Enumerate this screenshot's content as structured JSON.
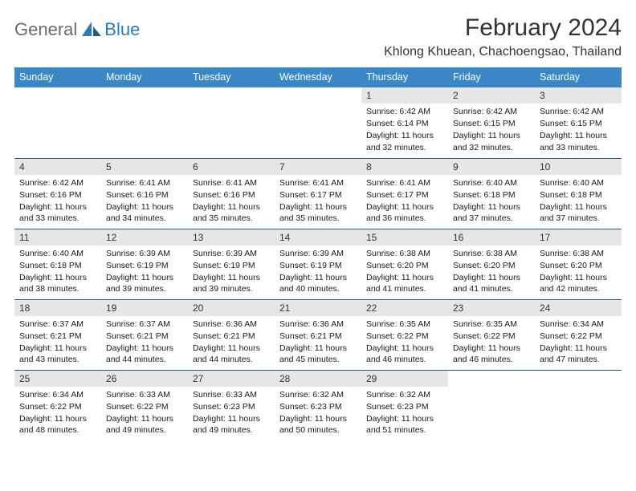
{
  "logo": {
    "text_gray": "General",
    "text_blue": "Blue"
  },
  "title": "February 2024",
  "location": "Khlong Khuean, Chachoengsao, Thailand",
  "colors": {
    "header_bg": "#3a87c7",
    "daynum_bg": "#e6e6e6",
    "row_border": "#1f5a87",
    "logo_gray": "#6b6b6b",
    "logo_blue": "#2b7bba"
  },
  "dayNames": [
    "Sunday",
    "Monday",
    "Tuesday",
    "Wednesday",
    "Thursday",
    "Friday",
    "Saturday"
  ],
  "firstWeekday": 4,
  "daysInMonth": 29,
  "days": {
    "1": {
      "sunrise": "6:42 AM",
      "sunset": "6:14 PM",
      "daylight": "11 hours and 32 minutes."
    },
    "2": {
      "sunrise": "6:42 AM",
      "sunset": "6:15 PM",
      "daylight": "11 hours and 32 minutes."
    },
    "3": {
      "sunrise": "6:42 AM",
      "sunset": "6:15 PM",
      "daylight": "11 hours and 33 minutes."
    },
    "4": {
      "sunrise": "6:42 AM",
      "sunset": "6:16 PM",
      "daylight": "11 hours and 33 minutes."
    },
    "5": {
      "sunrise": "6:41 AM",
      "sunset": "6:16 PM",
      "daylight": "11 hours and 34 minutes."
    },
    "6": {
      "sunrise": "6:41 AM",
      "sunset": "6:16 PM",
      "daylight": "11 hours and 35 minutes."
    },
    "7": {
      "sunrise": "6:41 AM",
      "sunset": "6:17 PM",
      "daylight": "11 hours and 35 minutes."
    },
    "8": {
      "sunrise": "6:41 AM",
      "sunset": "6:17 PM",
      "daylight": "11 hours and 36 minutes."
    },
    "9": {
      "sunrise": "6:40 AM",
      "sunset": "6:18 PM",
      "daylight": "11 hours and 37 minutes."
    },
    "10": {
      "sunrise": "6:40 AM",
      "sunset": "6:18 PM",
      "daylight": "11 hours and 37 minutes."
    },
    "11": {
      "sunrise": "6:40 AM",
      "sunset": "6:18 PM",
      "daylight": "11 hours and 38 minutes."
    },
    "12": {
      "sunrise": "6:39 AM",
      "sunset": "6:19 PM",
      "daylight": "11 hours and 39 minutes."
    },
    "13": {
      "sunrise": "6:39 AM",
      "sunset": "6:19 PM",
      "daylight": "11 hours and 39 minutes."
    },
    "14": {
      "sunrise": "6:39 AM",
      "sunset": "6:19 PM",
      "daylight": "11 hours and 40 minutes."
    },
    "15": {
      "sunrise": "6:38 AM",
      "sunset": "6:20 PM",
      "daylight": "11 hours and 41 minutes."
    },
    "16": {
      "sunrise": "6:38 AM",
      "sunset": "6:20 PM",
      "daylight": "11 hours and 41 minutes."
    },
    "17": {
      "sunrise": "6:38 AM",
      "sunset": "6:20 PM",
      "daylight": "11 hours and 42 minutes."
    },
    "18": {
      "sunrise": "6:37 AM",
      "sunset": "6:21 PM",
      "daylight": "11 hours and 43 minutes."
    },
    "19": {
      "sunrise": "6:37 AM",
      "sunset": "6:21 PM",
      "daylight": "11 hours and 44 minutes."
    },
    "20": {
      "sunrise": "6:36 AM",
      "sunset": "6:21 PM",
      "daylight": "11 hours and 44 minutes."
    },
    "21": {
      "sunrise": "6:36 AM",
      "sunset": "6:21 PM",
      "daylight": "11 hours and 45 minutes."
    },
    "22": {
      "sunrise": "6:35 AM",
      "sunset": "6:22 PM",
      "daylight": "11 hours and 46 minutes."
    },
    "23": {
      "sunrise": "6:35 AM",
      "sunset": "6:22 PM",
      "daylight": "11 hours and 46 minutes."
    },
    "24": {
      "sunrise": "6:34 AM",
      "sunset": "6:22 PM",
      "daylight": "11 hours and 47 minutes."
    },
    "25": {
      "sunrise": "6:34 AM",
      "sunset": "6:22 PM",
      "daylight": "11 hours and 48 minutes."
    },
    "26": {
      "sunrise": "6:33 AM",
      "sunset": "6:22 PM",
      "daylight": "11 hours and 49 minutes."
    },
    "27": {
      "sunrise": "6:33 AM",
      "sunset": "6:23 PM",
      "daylight": "11 hours and 49 minutes."
    },
    "28": {
      "sunrise": "6:32 AM",
      "sunset": "6:23 PM",
      "daylight": "11 hours and 50 minutes."
    },
    "29": {
      "sunrise": "6:32 AM",
      "sunset": "6:23 PM",
      "daylight": "11 hours and 51 minutes."
    }
  },
  "labels": {
    "sunrise": "Sunrise:",
    "sunset": "Sunset:",
    "daylight": "Daylight:"
  }
}
